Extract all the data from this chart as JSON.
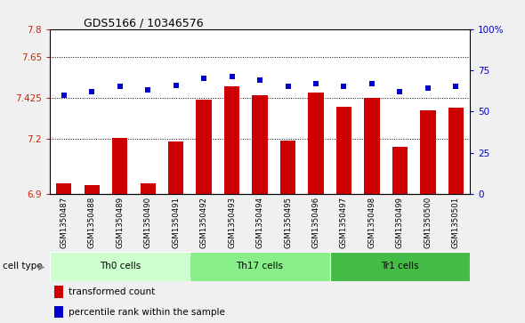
{
  "title": "GDS5166 / 10346576",
  "samples": [
    "GSM1350487",
    "GSM1350488",
    "GSM1350489",
    "GSM1350490",
    "GSM1350491",
    "GSM1350492",
    "GSM1350493",
    "GSM1350494",
    "GSM1350495",
    "GSM1350496",
    "GSM1350497",
    "GSM1350498",
    "GSM1350499",
    "GSM1350500",
    "GSM1350501"
  ],
  "bar_values": [
    6.955,
    6.95,
    7.205,
    6.955,
    7.185,
    7.415,
    7.485,
    7.44,
    7.19,
    7.455,
    7.375,
    7.425,
    7.155,
    7.355,
    7.37
  ],
  "percentile_values": [
    60,
    62,
    65,
    63,
    66,
    70,
    71,
    69,
    65,
    67,
    65,
    67,
    62,
    64,
    65
  ],
  "bar_color": "#cc0000",
  "dot_color": "#0000cc",
  "ylim_left": [
    6.9,
    7.8
  ],
  "ylim_right": [
    0,
    100
  ],
  "yticks_left": [
    6.9,
    7.2,
    7.425,
    7.65,
    7.8
  ],
  "ytick_labels_left": [
    "6.9",
    "7.2",
    "7.425",
    "7.65",
    "7.8"
  ],
  "yticks_right": [
    0,
    25,
    50,
    75,
    100
  ],
  "ytick_labels_right": [
    "0",
    "25",
    "50",
    "75",
    "100%"
  ],
  "dotted_lines": [
    7.2,
    7.425,
    7.65
  ],
  "cell_groups": [
    {
      "label": "Th0 cells",
      "start": 0,
      "end": 5,
      "color": "#ccffcc"
    },
    {
      "label": "Th17 cells",
      "start": 5,
      "end": 10,
      "color": "#88ee88"
    },
    {
      "label": "Tr1 cells",
      "start": 10,
      "end": 15,
      "color": "#44bb44"
    }
  ],
  "legend_bar_label": "transformed count",
  "legend_dot_label": "percentile rank within the sample",
  "cell_type_label": "cell type",
  "bar_width": 0.55
}
